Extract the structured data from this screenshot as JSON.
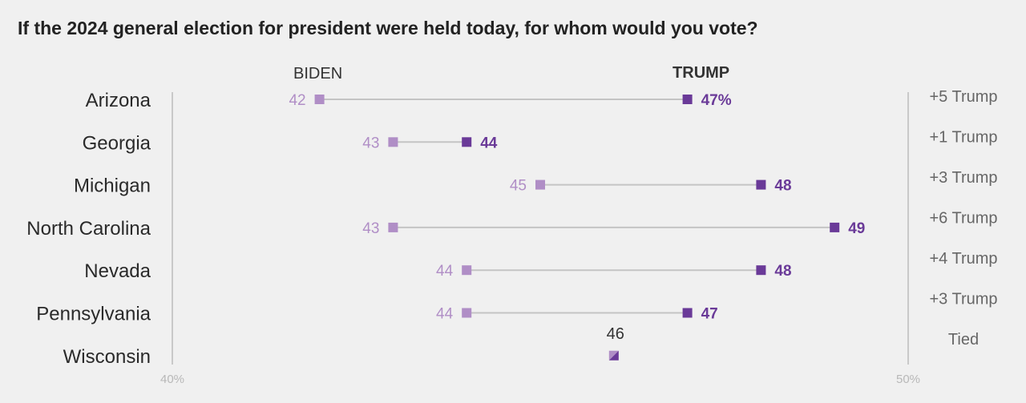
{
  "chart_data": {
    "type": "dumbbell",
    "title": "If the 2024 general election for president were held today, for whom would you vote?",
    "series": [
      {
        "name": "BIDEN",
        "color": "#b08ec6"
      },
      {
        "name": "TRUMP",
        "color": "#6a3a98"
      }
    ],
    "xlim": [
      40,
      50
    ],
    "x_ticks": [
      "40%",
      "50%"
    ],
    "rows": [
      {
        "state": "Arizona",
        "biden": 42,
        "trump": 47,
        "biden_label": "42",
        "trump_label": "47%",
        "margin": "+5 Trump"
      },
      {
        "state": "Georgia",
        "biden": 43,
        "trump": 44,
        "biden_label": "43",
        "trump_label": "44",
        "margin": "+1 Trump"
      },
      {
        "state": "Michigan",
        "biden": 45,
        "trump": 48,
        "biden_label": "45",
        "trump_label": "48",
        "margin": "+3 Trump"
      },
      {
        "state": "North Carolina",
        "biden": 43,
        "trump": 49,
        "biden_label": "43",
        "trump_label": "49",
        "margin": "+6 Trump"
      },
      {
        "state": "Nevada",
        "biden": 44,
        "trump": 48,
        "biden_label": "44",
        "trump_label": "48",
        "margin": "+4 Trump"
      },
      {
        "state": "Pennsylvania",
        "biden": 44,
        "trump": 47,
        "biden_label": "44",
        "trump_label": "47",
        "margin": "+3 Trump"
      },
      {
        "state": "Wisconsin",
        "biden": 46,
        "trump": 46,
        "biden_label": "",
        "trump_label": "",
        "tie_label": "46",
        "margin": "Tied"
      }
    ]
  }
}
